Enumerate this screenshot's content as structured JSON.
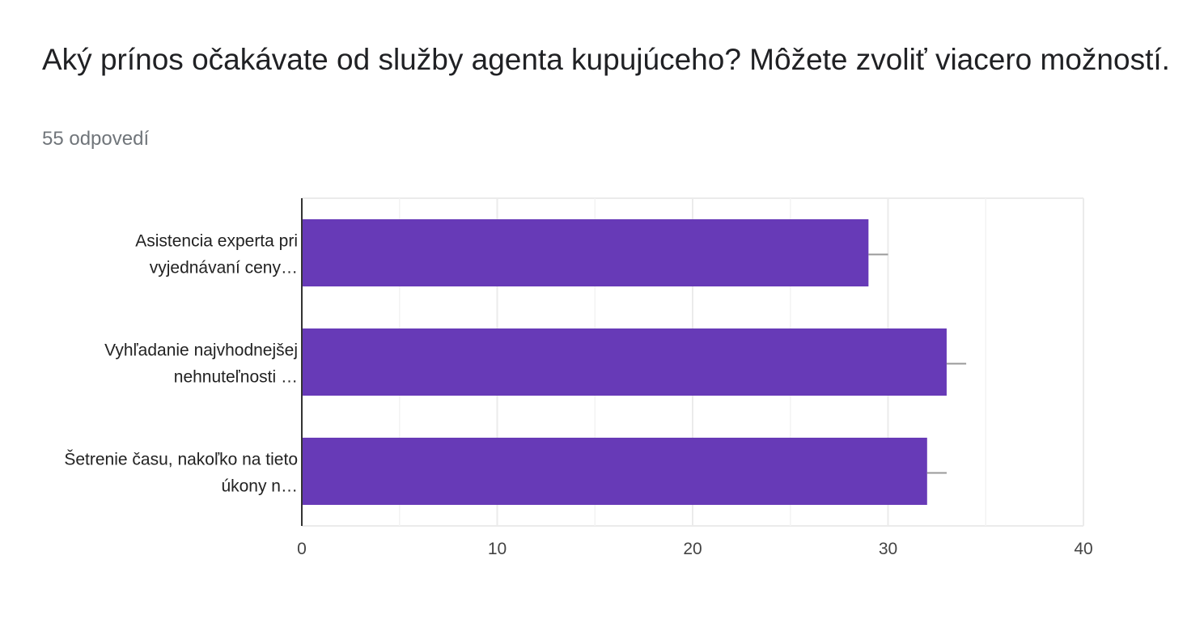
{
  "question": {
    "title": "Aký prínos očakávate od služby agenta kupujúceho? Môžete zvoliť viacero možností.",
    "responses": "55 odpovedí"
  },
  "colors": {
    "bar": "#673ab7",
    "grid": "#ebebeb",
    "axis": "#333333",
    "whisker": "#999999"
  },
  "chart_data": {
    "type": "bar",
    "orientation": "horizontal",
    "categories": [
      [
        "Asistencia experta pri",
        "vyjednávaní ceny…"
      ],
      [
        "Vyhľadanie najvhodnejšej",
        "nehnuteľnosti …"
      ],
      [
        "Šetrenie času, nakoľko na tieto",
        "úkony n…"
      ]
    ],
    "values": [
      29,
      33,
      32
    ],
    "error_upper": [
      30,
      34,
      33
    ],
    "xlim": [
      0,
      40
    ],
    "xticks": [
      0,
      10,
      20,
      30,
      40
    ],
    "minor_gridlines": [
      5,
      15,
      25,
      35
    ],
    "grid": true,
    "legend": "none"
  }
}
